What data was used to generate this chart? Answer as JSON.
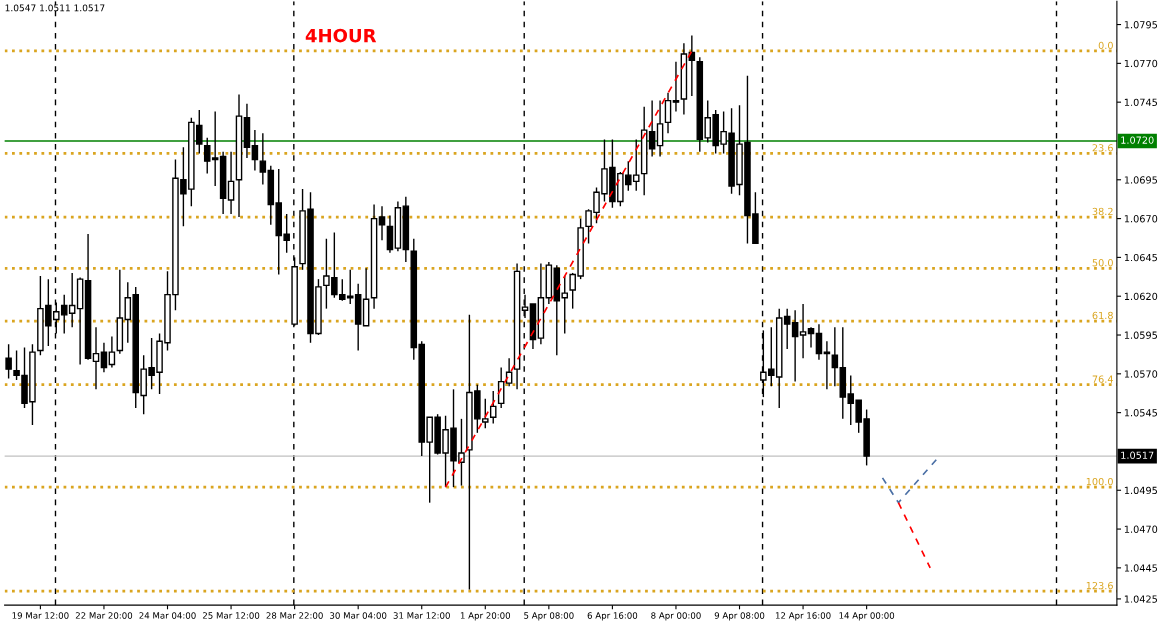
{
  "chart_data": {
    "type": "candlestick",
    "title": "4HOUR",
    "subtitle": "1.0547 1.0511 1.0517",
    "categories": [
      null,
      null,
      null,
      null,
      "19 Mar 12:00",
      null,
      null,
      null,
      null,
      null,
      null,
      null,
      "22 Mar 20:00",
      null,
      null,
      null,
      null,
      null,
      null,
      null,
      "24 Mar 04:00",
      null,
      null,
      null,
      null,
      null,
      null,
      null,
      "25 Mar 12:00",
      null,
      null,
      null,
      null,
      null,
      null,
      null,
      "28 Mar 22:00",
      null,
      null,
      null,
      null,
      null,
      null,
      null,
      "30 Mar 04:00",
      null,
      null,
      null,
      null,
      null,
      null,
      null,
      "31 Mar 12:00",
      null,
      null,
      null,
      null,
      null,
      null,
      null,
      "1 Apr 20:00",
      null,
      null,
      null,
      null,
      null,
      null,
      null,
      "5 Apr 08:00",
      null,
      null,
      null,
      null,
      null,
      null,
      null,
      "6 Apr 16:00",
      null,
      null,
      null,
      null,
      null,
      null,
      null,
      "8 Apr 00:00",
      null,
      null,
      null,
      null,
      null,
      null,
      null,
      "9 Apr 08:00",
      null,
      null,
      null,
      null,
      null,
      null,
      null,
      "12 Apr 16:00",
      null,
      null,
      null,
      null,
      null,
      null,
      null,
      "14 Apr 00:00",
      null,
      null,
      null,
      null,
      null,
      null,
      null,
      null,
      null,
      null,
      null,
      null,
      null,
      null,
      null,
      null,
      null,
      null,
      null,
      null,
      null,
      null,
      null,
      null,
      null,
      null,
      null,
      null,
      null,
      null,
      null
    ],
    "ohlc": [
      [
        1.058,
        1.0589,
        1.0567,
        1.0573
      ],
      [
        1.0572,
        1.0585,
        1.0566,
        1.0569
      ],
      [
        1.0569,
        1.0587,
        1.0548,
        1.0551
      ],
      [
        1.0552,
        1.0589,
        1.0537,
        1.0584
      ],
      [
        1.0585,
        1.0633,
        1.0582,
        1.0612
      ],
      [
        1.0614,
        1.0631,
        1.0588,
        1.0601
      ],
      [
        1.0605,
        1.0616,
        1.0596,
        1.061
      ],
      [
        1.0614,
        1.0621,
        1.0596,
        1.0608
      ],
      [
        1.0609,
        1.0635,
        1.06,
        1.0614
      ],
      [
        1.0612,
        1.0632,
        1.0576,
        1.0631
      ],
      [
        1.063,
        1.066,
        1.0579,
        1.058
      ],
      [
        1.0578,
        1.06,
        1.056,
        1.0583
      ],
      [
        1.0584,
        1.059,
        1.0571,
        1.0574
      ],
      [
        1.0576,
        1.0594,
        1.0574,
        1.0584
      ],
      [
        1.0585,
        1.0637,
        1.0583,
        1.0606
      ],
      [
        1.0605,
        1.0629,
        1.059,
        1.0619
      ],
      [
        1.0621,
        1.0626,
        1.0548,
        1.0558
      ],
      [
        1.0556,
        1.0582,
        1.0544,
        1.0573
      ],
      [
        1.0574,
        1.0593,
        1.056,
        1.0569
      ],
      [
        1.0571,
        1.0596,
        1.0557,
        1.0591
      ],
      [
        1.059,
        1.0636,
        1.0585,
        1.0621
      ],
      [
        1.0621,
        1.0708,
        1.0611,
        1.0696
      ],
      [
        1.0695,
        1.0716,
        1.0665,
        1.0686
      ],
      [
        1.0689,
        1.0735,
        1.0678,
        1.0732
      ],
      [
        1.073,
        1.074,
        1.0712,
        1.0718
      ],
      [
        1.0717,
        1.0722,
        1.0699,
        1.0707
      ],
      [
        1.0709,
        1.0739,
        1.0691,
        1.0708
      ],
      [
        1.071,
        1.0713,
        1.0673,
        1.0683
      ],
      [
        1.0682,
        1.0713,
        1.0673,
        1.0694
      ],
      [
        1.0695,
        1.075,
        1.0671,
        1.0736
      ],
      [
        1.0735,
        1.0744,
        1.0709,
        1.0716
      ],
      [
        1.0717,
        1.0727,
        1.0701,
        1.0708
      ],
      [
        1.0707,
        1.0725,
        1.0692,
        1.07
      ],
      [
        1.0701,
        1.0704,
        1.0666,
        1.0679
      ],
      [
        1.068,
        1.0702,
        1.0634,
        1.0659
      ],
      [
        1.066,
        1.0673,
        1.0648,
        1.0656
      ],
      [
        1.0602,
        1.0645,
        1.0601,
        1.0639
      ],
      [
        1.0641,
        1.0689,
        1.0637,
        1.0675
      ],
      [
        1.0676,
        1.0687,
        1.059,
        1.0596
      ],
      [
        1.0596,
        1.0631,
        1.0595,
        1.0626
      ],
      [
        1.0627,
        1.0657,
        1.0612,
        1.0633
      ],
      [
        1.0632,
        1.0661,
        1.0619,
        1.0621
      ],
      [
        1.0621,
        1.0631,
        1.0617,
        1.0618
      ],
      [
        1.062,
        1.0637,
        1.0615,
        1.0619
      ],
      [
        1.0621,
        1.0628,
        1.0585,
        1.0602
      ],
      [
        1.0601,
        1.0638,
        1.0601,
        1.0618
      ],
      [
        1.0619,
        1.0679,
        1.0612,
        1.067
      ],
      [
        1.0671,
        1.0678,
        1.0656,
        1.0666
      ],
      [
        1.0665,
        1.0672,
        1.0648,
        1.065
      ],
      [
        1.0651,
        1.0681,
        1.0649,
        1.0677
      ],
      [
        1.0678,
        1.0684,
        1.0642,
        1.065
      ],
      [
        1.0649,
        1.0657,
        1.0579,
        1.0587
      ],
      [
        1.0589,
        1.0591,
        1.0517,
        1.0526
      ],
      [
        1.0526,
        1.0542,
        1.0487,
        1.0542
      ],
      [
        1.0542,
        1.0544,
        1.0518,
        1.0519
      ],
      [
        1.0519,
        1.0543,
        1.0497,
        1.0534
      ],
      [
        1.0535,
        1.056,
        1.0497,
        1.0514
      ],
      [
        1.0513,
        1.0541,
        1.0498,
        1.0519
      ],
      [
        1.0521,
        1.0608,
        1.0431,
        1.0558
      ],
      [
        1.0559,
        1.0563,
        1.0532,
        1.0541
      ],
      [
        1.0539,
        1.0554,
        1.0535,
        1.0541
      ],
      [
        1.0542,
        1.0559,
        1.0538,
        1.0549
      ],
      [
        1.0551,
        1.0574,
        1.0548,
        1.0565
      ],
      [
        1.0564,
        1.058,
        1.0562,
        1.0571
      ],
      [
        1.0573,
        1.0641,
        1.056,
        1.0636
      ],
      [
        1.0611,
        1.0621,
        1.0606,
        1.0613
      ],
      [
        1.0615,
        1.0615,
        1.0586,
        1.0592
      ],
      [
        1.0593,
        1.0641,
        1.0589,
        1.0619
      ],
      [
        1.0619,
        1.0642,
        1.0615,
        1.064
      ],
      [
        1.0638,
        1.064,
        1.0582,
        1.0617
      ],
      [
        1.0619,
        1.0633,
        1.0596,
        1.0622
      ],
      [
        1.0624,
        1.0635,
        1.0612,
        1.0634
      ],
      [
        1.0633,
        1.067,
        1.0631,
        1.0664
      ],
      [
        1.0665,
        1.0676,
        1.0654,
        1.0675
      ],
      [
        1.0674,
        1.069,
        1.0667,
        1.0687
      ],
      [
        1.0686,
        1.0721,
        1.0681,
        1.0702
      ],
      [
        1.0703,
        1.0721,
        1.0677,
        1.0681
      ],
      [
        1.0681,
        1.07,
        1.0678,
        1.0699
      ],
      [
        1.0698,
        1.0707,
        1.0688,
        1.0692
      ],
      [
        1.0694,
        1.0721,
        1.0688,
        1.0698
      ],
      [
        1.0699,
        1.0742,
        1.0685,
        1.0727
      ],
      [
        1.0726,
        1.0746,
        1.071,
        1.0715
      ],
      [
        1.0717,
        1.0746,
        1.071,
        1.0731
      ],
      [
        1.0732,
        1.0751,
        1.0725,
        1.0746
      ],
      [
        1.0746,
        1.0771,
        1.0739,
        1.0745
      ],
      [
        1.0747,
        1.0783,
        1.0737,
        1.0776
      ],
      [
        1.0777,
        1.0788,
        1.0749,
        1.0772
      ],
      [
        1.0771,
        1.0774,
        1.0713,
        1.0721
      ],
      [
        1.0722,
        1.0746,
        1.0719,
        1.0735
      ],
      [
        1.0737,
        1.074,
        1.0712,
        1.0717
      ],
      [
        1.0718,
        1.0739,
        1.0712,
        1.0726
      ],
      [
        1.0725,
        1.0741,
        1.0686,
        1.0691
      ],
      [
        1.0692,
        1.0743,
        1.0685,
        1.0718
      ],
      [
        1.0719,
        1.0762,
        1.0654,
        1.0672
      ],
      [
        1.0673,
        1.0687,
        1.0654,
        1.0654
      ],
      [
        1.0566,
        1.0598,
        1.0555,
        1.0571
      ],
      [
        1.0573,
        1.06,
        1.0562,
        1.0569
      ],
      [
        1.0568,
        1.0612,
        1.0548,
        1.0606
      ],
      [
        1.0607,
        1.0612,
        1.0586,
        1.0602
      ],
      [
        1.0603,
        1.0611,
        1.0565,
        1.0594
      ],
      [
        1.0595,
        1.0615,
        1.058,
        1.0597
      ],
      [
        1.0599,
        1.06,
        1.0587,
        1.0596
      ],
      [
        1.0596,
        1.0602,
        1.0579,
        1.0583
      ],
      [
        1.0584,
        1.0591,
        1.056,
        1.0583
      ],
      [
        1.0582,
        1.06,
        1.0562,
        1.0574
      ],
      [
        1.0574,
        1.06,
        1.0541,
        1.0555
      ],
      [
        1.0557,
        1.0569,
        1.0537,
        1.0551
      ],
      [
        1.0553,
        1.0553,
        1.0532,
        1.0539
      ],
      [
        1.0541,
        1.0547,
        1.0511,
        1.0517
      ],
      null,
      null,
      null,
      null,
      null,
      null,
      null,
      null,
      null,
      null,
      null,
      null,
      null,
      null,
      null,
      null,
      null,
      null,
      null,
      null,
      null,
      null,
      null,
      null,
      null,
      null,
      null,
      null,
      null,
      null,
      null
    ],
    "series": [
      {
        "type": "line",
        "color": "#ff0000",
        "line_style": "dashed",
        "values": [
          null,
          null,
          null,
          null,
          null,
          null,
          null,
          null,
          null,
          null,
          null,
          null,
          null,
          null,
          null,
          null,
          null,
          null,
          null,
          null,
          null,
          null,
          null,
          null,
          null,
          null,
          null,
          null,
          null,
          null,
          null,
          null,
          null,
          null,
          null,
          null,
          null,
          null,
          null,
          null,
          null,
          null,
          null,
          null,
          null,
          null,
          null,
          null,
          null,
          null,
          null,
          null,
          null,
          null,
          null,
          1.0497,
          null,
          null,
          null,
          null,
          null,
          null,
          null,
          null,
          null,
          null,
          null,
          null,
          null,
          null,
          null,
          null,
          null,
          null,
          null,
          null,
          null,
          null,
          null,
          null,
          null,
          null,
          null,
          null,
          null,
          null,
          1.0778,
          null,
          null,
          null,
          null,
          null,
          null,
          null,
          null,
          null,
          null,
          null,
          null,
          null,
          null,
          null,
          null,
          null,
          null,
          null,
          null,
          null,
          null,
          null,
          null,
          null,
          null,
          null,
          null,
          null,
          null,
          null,
          null,
          null,
          null,
          null,
          null,
          null,
          null,
          null,
          null,
          null,
          null,
          null,
          null,
          null,
          null,
          null,
          null,
          null,
          null,
          null,
          null,
          null
        ]
      },
      {
        "type": "line",
        "color": "#4a6fa5",
        "line_style": "dashed",
        "values": [
          null,
          null,
          null,
          null,
          null,
          null,
          null,
          null,
          null,
          null,
          null,
          null,
          null,
          null,
          null,
          null,
          null,
          null,
          null,
          null,
          null,
          null,
          null,
          null,
          null,
          null,
          null,
          null,
          null,
          null,
          null,
          null,
          null,
          null,
          null,
          null,
          null,
          null,
          null,
          null,
          null,
          null,
          null,
          null,
          null,
          null,
          null,
          null,
          null,
          null,
          null,
          null,
          null,
          null,
          null,
          null,
          null,
          null,
          null,
          null,
          null,
          null,
          null,
          null,
          null,
          null,
          null,
          null,
          null,
          null,
          null,
          null,
          null,
          null,
          null,
          null,
          null,
          null,
          null,
          null,
          null,
          null,
          null,
          null,
          null,
          null,
          null,
          null,
          null,
          null,
          null,
          null,
          null,
          null,
          null,
          null,
          null,
          null,
          null,
          null,
          null,
          null,
          null,
          null,
          null,
          null,
          null,
          null,
          null,
          null,
          1.0503,
          null,
          1.0487,
          null,
          null,
          null,
          null,
          1.0516,
          null,
          null,
          null,
          null,
          null,
          null,
          null,
          null,
          null,
          null,
          null,
          null,
          null,
          null,
          null,
          null,
          null,
          null,
          null,
          null,
          null,
          null
        ]
      },
      {
        "type": "line",
        "color": "#ff0000",
        "line_style": "dashed",
        "values": [
          null,
          null,
          null,
          null,
          null,
          null,
          null,
          null,
          null,
          null,
          null,
          null,
          null,
          null,
          null,
          null,
          null,
          null,
          null,
          null,
          null,
          null,
          null,
          null,
          null,
          null,
          null,
          null,
          null,
          null,
          null,
          null,
          null,
          null,
          null,
          null,
          null,
          null,
          null,
          null,
          null,
          null,
          null,
          null,
          null,
          null,
          null,
          null,
          null,
          null,
          null,
          null,
          null,
          null,
          null,
          null,
          null,
          null,
          null,
          null,
          null,
          null,
          null,
          null,
          null,
          null,
          null,
          null,
          null,
          null,
          null,
          null,
          null,
          null,
          null,
          null,
          null,
          null,
          null,
          null,
          null,
          null,
          null,
          null,
          null,
          null,
          null,
          null,
          null,
          null,
          null,
          null,
          null,
          null,
          null,
          null,
          null,
          null,
          null,
          null,
          null,
          null,
          null,
          null,
          null,
          null,
          null,
          null,
          null,
          null,
          null,
          null,
          1.0487,
          null,
          null,
          null,
          1.0445,
          null,
          null,
          null,
          null,
          null,
          null,
          null,
          null,
          null,
          null,
          null,
          null,
          null,
          null,
          null,
          null,
          null,
          null,
          null,
          null,
          null,
          null,
          null
        ]
      }
    ],
    "ylim": [
      1.0421,
      1.081
    ],
    "yticks": [
      1.0795,
      {
        "value": 1.077,
        "label": "1.0770"
      },
      1.0745,
      1.0695,
      {
        "value": 1.067,
        "label": "1.0670"
      },
      1.0645,
      {
        "value": 1.062,
        "label": "1.0620"
      },
      1.0595,
      {
        "value": 1.057,
        "label": "1.0570"
      },
      1.0545,
      1.0495,
      {
        "value": 1.047,
        "label": "1.0470"
      },
      1.0445,
      1.0425
    ],
    "ref_lines": [
      {
        "axis": "y",
        "value": 1.072,
        "label": "1.0720",
        "color": "#008000",
        "line_style": "solid"
      },
      {
        "axis": "y",
        "value": 1.0517,
        "label": "1.0517",
        "color": "#c0c0c0",
        "line_style": "solid"
      },
      {
        "axis": "y",
        "value": 1.0778,
        "color": "#daa520",
        "line_style": "dotted"
      },
      {
        "axis": "y",
        "value": 1.0712,
        "color": "#daa520",
        "line_style": "dotted"
      },
      {
        "axis": "y",
        "value": 1.0671,
        "color": "#daa520",
        "line_style": "dotted"
      },
      {
        "axis": "y",
        "value": 1.0638,
        "color": "#daa520",
        "line_style": "dotted"
      },
      {
        "axis": "y",
        "value": 1.0604,
        "color": "#daa520",
        "line_style": "dotted"
      },
      {
        "axis": "y",
        "value": 1.0563,
        "color": "#daa520",
        "line_style": "dotted"
      },
      {
        "axis": "y",
        "value": 1.0497,
        "color": "#daa520",
        "line_style": "dotted"
      },
      {
        "axis": "y",
        "value": 1.043,
        "color": "#daa520",
        "line_style": "dotted"
      }
    ],
    "annotations": [
      {
        "text": "0.0",
        "y": 1.0778
      },
      {
        "text": "23.6",
        "y": 1.0712
      },
      {
        "text": "38.2",
        "y": 1.0671
      },
      {
        "text": "50.0",
        "y": 1.0638
      },
      {
        "text": "61.8",
        "y": 1.0604
      },
      {
        "text": "76.4",
        "y": 1.0563
      },
      {
        "text": "100.0",
        "y": 1.0497
      },
      {
        "text": "123.6",
        "y": 1.043
      }
    ],
    "grid": false,
    "legend": false
  }
}
